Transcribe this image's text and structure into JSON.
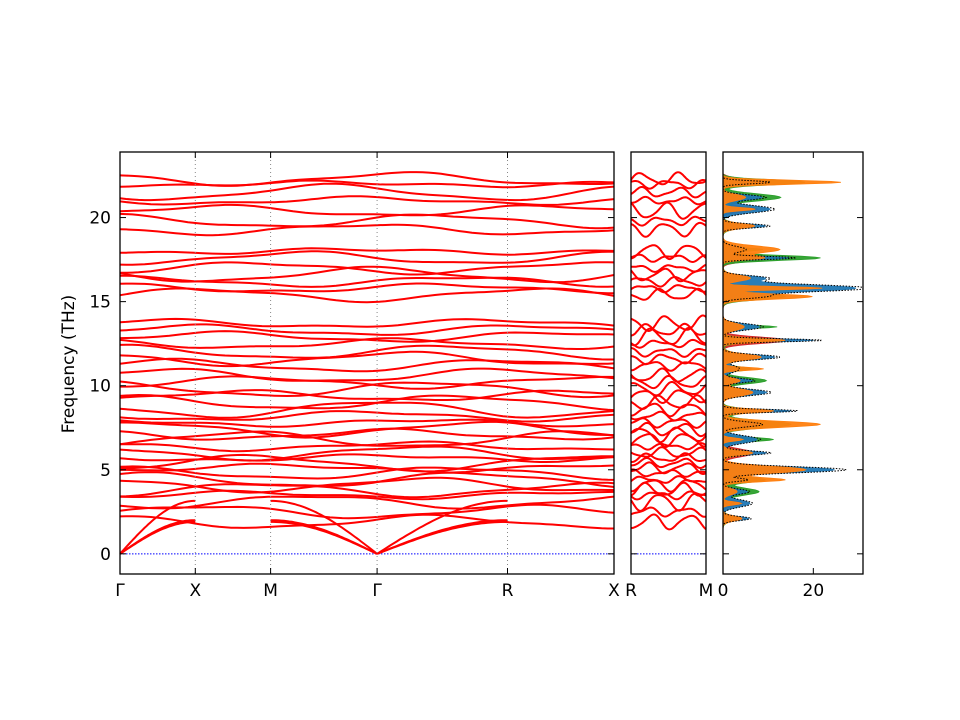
{
  "chart_data": {
    "type": "line",
    "ylabel": "Frequency (THz)",
    "ylim": [
      -1.2,
      23.9
    ],
    "yticks": [
      0,
      5,
      10,
      15,
      20
    ],
    "dos_xticks": [
      0,
      20
    ],
    "dos_xlim": [
      0,
      31
    ],
    "band_color": "#ff0000",
    "zero_line_color": "#0000ff",
    "dos_colors": [
      "#1f77b4",
      "#ff7f0e",
      "#2ca02c",
      "#d62728"
    ],
    "total_dos_color": "#000000",
    "panels": [
      {
        "segments": [
          {
            "start": "Γ",
            "end": "X",
            "length": 0.5
          },
          {
            "start": "X",
            "end": "M",
            "length": 0.5
          },
          {
            "start": "M",
            "end": "Γ",
            "length": 0.7071
          },
          {
            "start": "Γ",
            "end": "R",
            "length": 0.866
          },
          {
            "start": "R",
            "end": "X",
            "length": 0.7071
          }
        ]
      },
      {
        "segments": [
          {
            "start": "R",
            "end": "M",
            "length": 0.5
          }
        ]
      }
    ],
    "band_levels_thz": [
      1.9,
      2.5,
      3.1,
      3.5,
      3.8,
      4.1,
      4.4,
      4.8,
      5.1,
      5.4,
      5.7,
      6.0,
      6.4,
      6.8,
      7.1,
      7.4,
      7.8,
      8.2,
      8.6,
      9.0,
      9.4,
      9.8,
      10.2,
      10.6,
      11.2,
      11.6,
      12.0,
      12.5,
      12.9,
      13.3,
      13.7,
      15.4,
      15.8,
      16.2,
      16.6,
      17.0,
      17.6,
      18.0,
      19.3,
      19.8,
      20.4,
      21.0,
      21.5,
      22.0,
      22.3
    ],
    "acoustic_end_thz": [
      2.0,
      2.0,
      3.5
    ],
    "dos_peaks": [
      {
        "f": 22.1,
        "h": 29
      },
      {
        "f": 21.2,
        "h": 16
      },
      {
        "f": 20.5,
        "h": 14
      },
      {
        "f": 19.5,
        "h": 10
      },
      {
        "f": 18.1,
        "h": 14
      },
      {
        "f": 17.6,
        "h": 27
      },
      {
        "f": 16.4,
        "h": 12
      },
      {
        "f": 15.8,
        "h": 31
      },
      {
        "f": 15.3,
        "h": 22
      },
      {
        "f": 13.5,
        "h": 15
      },
      {
        "f": 12.7,
        "h": 27
      },
      {
        "f": 11.7,
        "h": 12
      },
      {
        "f": 11.0,
        "h": 10
      },
      {
        "f": 10.3,
        "h": 12
      },
      {
        "f": 9.6,
        "h": 13
      },
      {
        "f": 8.5,
        "h": 16
      },
      {
        "f": 7.7,
        "h": 24
      },
      {
        "f": 6.8,
        "h": 14
      },
      {
        "f": 6.0,
        "h": 13
      },
      {
        "f": 5.0,
        "h": 26
      },
      {
        "f": 4.4,
        "h": 15
      },
      {
        "f": 3.7,
        "h": 10
      },
      {
        "f": 3.0,
        "h": 8
      },
      {
        "f": 2.1,
        "h": 6
      }
    ]
  }
}
